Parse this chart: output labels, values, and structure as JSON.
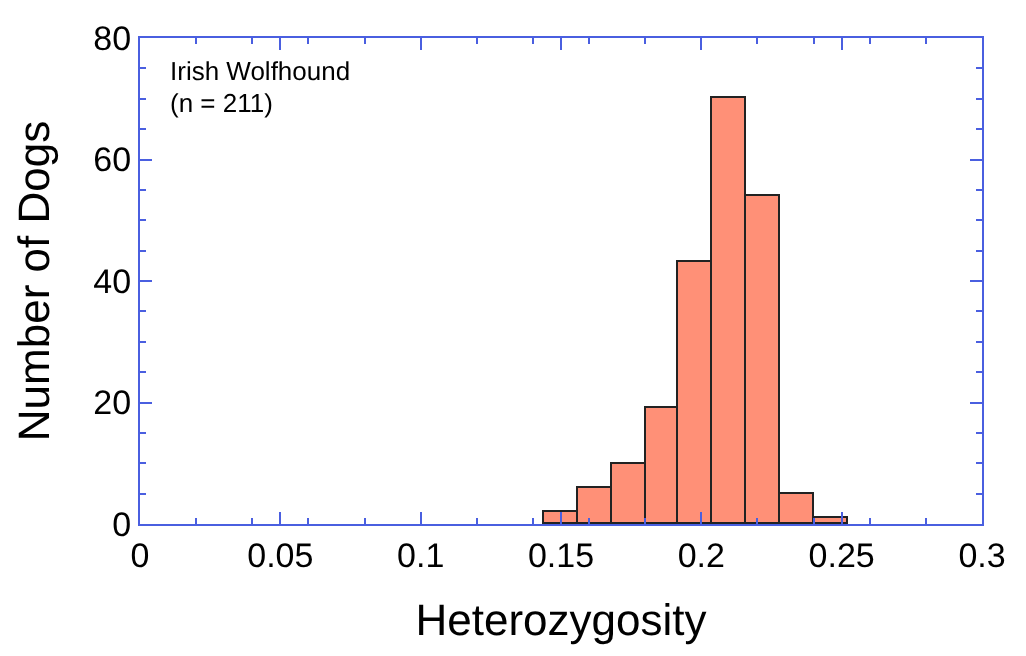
{
  "chart_data": {
    "type": "histogram",
    "xlabel": "Heterozygosity",
    "ylabel": "Number of Dogs",
    "annotations": [
      "Irish Wolfhound",
      "(n = 211)"
    ],
    "bins": [
      0.144,
      0.156,
      0.168,
      0.18,
      0.192,
      0.204,
      0.216,
      0.228,
      0.24,
      0.252
    ],
    "values": [
      2,
      6,
      10,
      19,
      43,
      70,
      54,
      5,
      1
    ],
    "color": "#ff9077",
    "xlim": [
      0,
      0.3
    ],
    "xticks": [
      0,
      0.05,
      0.1,
      0.15,
      0.2,
      0.25,
      0.3
    ],
    "ylim": [
      0,
      80
    ],
    "yticks": [
      0,
      20,
      40,
      60,
      80
    ]
  }
}
